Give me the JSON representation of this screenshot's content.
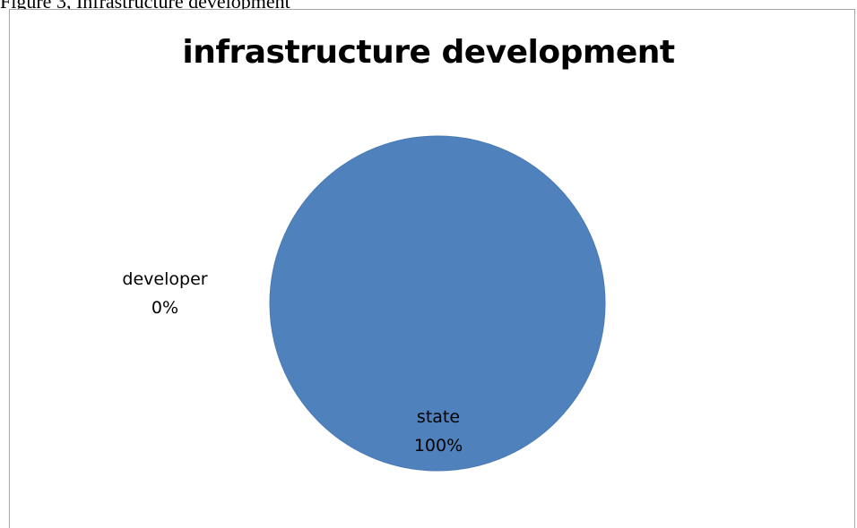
{
  "caption": "Figure 3, Infrastructure development",
  "chart_data": {
    "type": "pie",
    "title": "infrastructure development",
    "categories": [
      "developer",
      "state"
    ],
    "values": [
      0,
      100
    ],
    "data_labels": [
      {
        "category": "developer",
        "value": "0%"
      },
      {
        "category": "state",
        "value": "100%"
      }
    ],
    "colors": {
      "state": "#4f81bd",
      "developer": "#c0504d"
    },
    "legend": "none"
  }
}
